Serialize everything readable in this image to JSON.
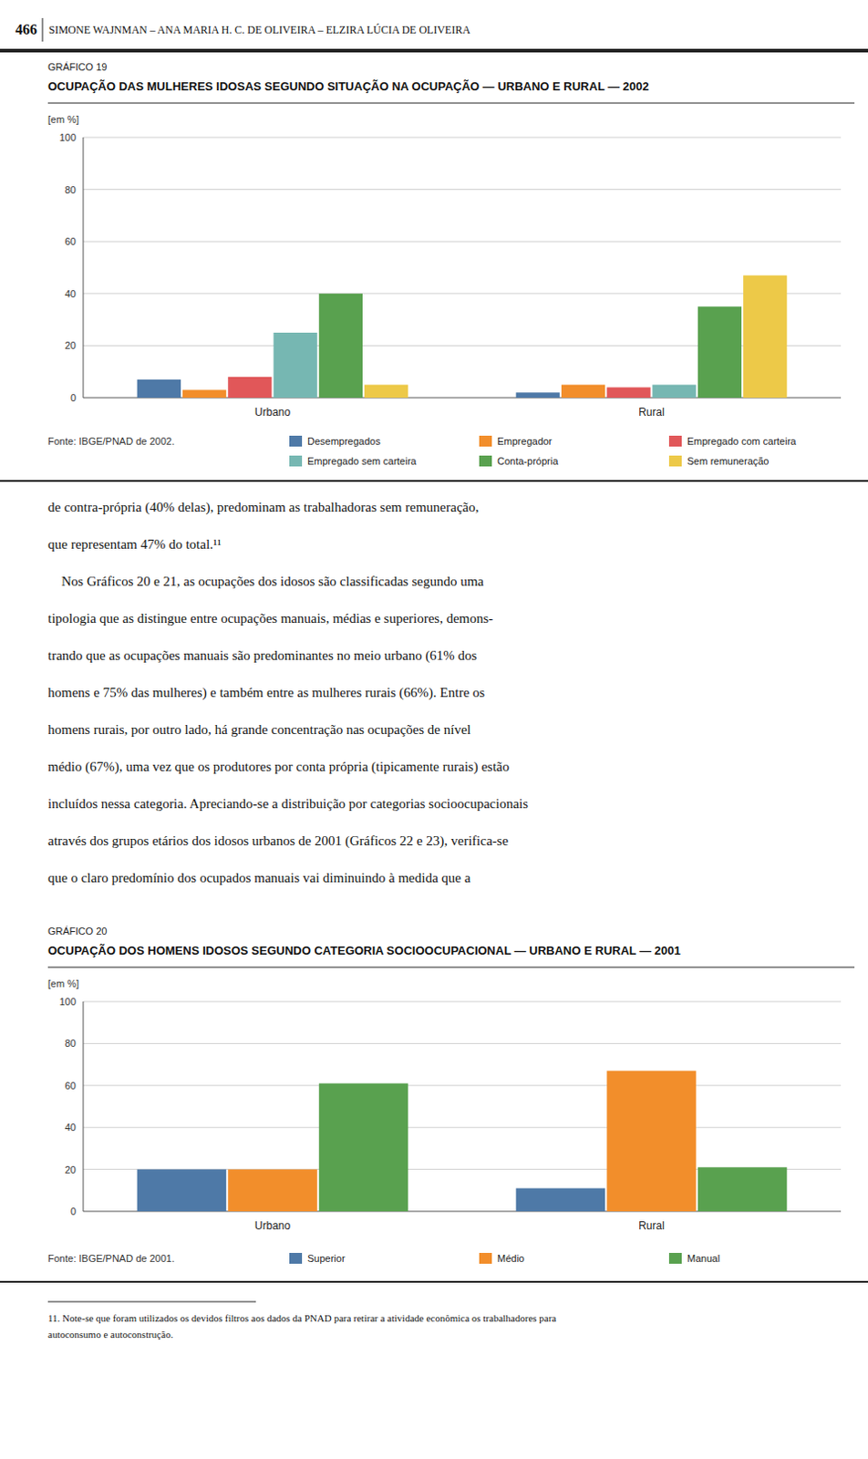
{
  "chart_data": [
    {
      "type": "bar",
      "title": "OCUPAÇÃO DAS MULHERES IDOSAS SEGUNDO SITUAÇÃO NA OCUPAÇÃO — URBANO E RURAL — 2002",
      "annotations": [
        "GRÁFICO 19",
        "Fonte: IBGE/PNAD de 2002."
      ],
      "ylabel": "[em %]",
      "categories": [
        "Urbano",
        "Rural"
      ],
      "series": [
        {
          "name": "Desempregados",
          "color": "#4e79a7",
          "values": [
            7,
            2
          ]
        },
        {
          "name": "Empregador",
          "color": "#f28e2b",
          "values": [
            3,
            5
          ]
        },
        {
          "name": "Empregado com carteira",
          "color": "#e15759",
          "values": [
            8,
            4
          ]
        },
        {
          "name": "Empregado sem carteira",
          "color": "#76b7b2",
          "values": [
            25,
            5
          ]
        },
        {
          "name": "Conta-própria",
          "color": "#59a14f",
          "values": [
            40,
            35
          ]
        },
        {
          "name": "Sem remuneração",
          "color": "#edc948",
          "values": [
            5,
            47
          ]
        }
      ],
      "ylim": [
        0,
        100
      ],
      "yticks": [
        0,
        20,
        40,
        60,
        80,
        100
      ],
      "grid": true,
      "legend": "bottom"
    },
    {
      "type": "bar",
      "title": "OCUPAÇÃO DOS HOMENS IDOSOS SEGUNDO CATEGORIA SOCIOOCUPACIONAL — URBANO E RURAL — 2001",
      "annotations": [
        "GRÁFICO 20",
        "Fonte: IBGE/PNAD de 2001."
      ],
      "ylabel": "[em %]",
      "categories": [
        "Urbano",
        "Rural"
      ],
      "series": [
        {
          "name": "Superior",
          "color": "#4e79a7",
          "values": [
            20,
            11
          ]
        },
        {
          "name": "Médio",
          "color": "#f28e2b",
          "values": [
            20,
            67
          ]
        },
        {
          "name": "Manual",
          "color": "#59a14f",
          "values": [
            61,
            21
          ]
        }
      ],
      "ylim": [
        0,
        100
      ],
      "yticks": [
        0,
        20,
        40,
        60,
        80,
        100
      ],
      "grid": true,
      "legend": "bottom"
    }
  ],
  "annotations": [
    "466",
    "SIMONE WAJNMAN – ANA MARIA H. C. DE OLIVEIRA – ELZIRA LÚCIA DE OLIVEIRA",
    "de contra-própria (40% delas), predominam as trabalhadoras sem remuneração,",
    "que representam 47% do total.¹¹",
    "    Nos Gráficos 20 e 21, as ocupações dos idosos são classificadas segundo uma",
    "tipologia que as distingue entre ocupações manuais, médias e superiores, demons-",
    "trando que as ocupações manuais são predominantes no meio urbano (61% dos",
    "homens e 75% das mulheres) e também entre as mulheres rurais (66%). Entre os",
    "homens rurais, por outro lado, há grande concentração nas ocupações de nível",
    "médio (67%), uma vez que os produtores por conta própria (tipicamente rurais) estão",
    "incluídos nessa categoria. Apreciando-se a distribuição por categorias socioocupacionais",
    "através dos grupos etários dos idosos urbanos de 2001 (Gráficos 22 e 23), verifica-se",
    "que o claro predomínio dos ocupados manuais vai diminuindo à medida que a",
    "11. Note-se que foram utilizados os devidos filtros aos dados da PNAD para retirar a atividade econômica os trabalhadores para",
    "autoconsumo e autoconstrução."
  ]
}
